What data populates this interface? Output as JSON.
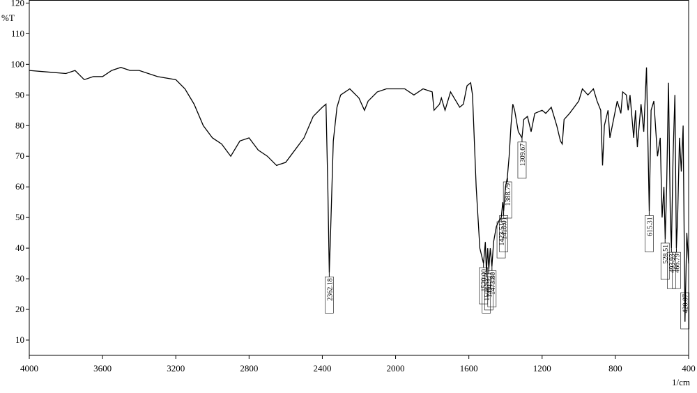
{
  "chart_data": {
    "type": "line",
    "y_label": "%T",
    "x_label": "1/cm",
    "xlim": [
      4000,
      400
    ],
    "ylim": [
      5,
      121
    ],
    "xticks": [
      4000,
      3600,
      3200,
      2800,
      2400,
      2000,
      1600,
      1200,
      800,
      400
    ],
    "yticks": [
      10,
      20,
      30,
      40,
      50,
      60,
      70,
      80,
      90,
      100,
      110,
      120
    ],
    "series": [
      {
        "color": "#000000",
        "x": [
          4000,
          3900,
          3800,
          3750,
          3700,
          3650,
          3600,
          3550,
          3500,
          3450,
          3400,
          3300,
          3200,
          3150,
          3100,
          3050,
          3000,
          2950,
          2900,
          2850,
          2800,
          2750,
          2700,
          2650,
          2600,
          2550,
          2500,
          2450,
          2400,
          2380,
          2370,
          2362,
          2355,
          2340,
          2320,
          2300,
          2250,
          2200,
          2170,
          2150,
          2100,
          2050,
          2000,
          1950,
          1900,
          1850,
          1800,
          1790,
          1760,
          1750,
          1730,
          1700,
          1680,
          1650,
          1630,
          1610,
          1590,
          1580,
          1560,
          1540,
          1520,
          1510,
          1504,
          1497,
          1491,
          1483,
          1474,
          1465,
          1450,
          1435,
          1423,
          1415,
          1410,
          1400,
          1390,
          1380,
          1370,
          1360,
          1350,
          1330,
          1310,
          1300,
          1280,
          1260,
          1240,
          1200,
          1180,
          1150,
          1120,
          1100,
          1090,
          1080,
          1050,
          1000,
          980,
          950,
          920,
          900,
          880,
          870,
          860,
          840,
          830,
          810,
          790,
          770,
          760,
          740,
          730,
          720,
          700,
          690,
          680,
          660,
          645,
          630,
          615,
          605,
          590,
          570,
          555,
          545,
          535,
          528,
          520,
          510,
          500,
          494,
          485,
          475,
          467,
          460,
          450,
          440,
          430,
          420,
          410,
          400
        ],
        "values": [
          98,
          97.5,
          97,
          98,
          95,
          96,
          96,
          98,
          99,
          98,
          98,
          96,
          95,
          92,
          87,
          80,
          76,
          74,
          70,
          75,
          76,
          72,
          70,
          67,
          68,
          72,
          76,
          83,
          86,
          87,
          60,
          32,
          45,
          75,
          86,
          90,
          92,
          89,
          85,
          88,
          91,
          92,
          92,
          92,
          90,
          92,
          91,
          85,
          87,
          89,
          85,
          91,
          89,
          86,
          87,
          93,
          94,
          90,
          60,
          40,
          35,
          42,
          32,
          40,
          33,
          40,
          34,
          42,
          47,
          49,
          50,
          55,
          52,
          60,
          63,
          70,
          80,
          87,
          85,
          78,
          76,
          82,
          83,
          78,
          84,
          85,
          84,
          86,
          80,
          75,
          74,
          82,
          84,
          88,
          92,
          90,
          92,
          88,
          85,
          67,
          80,
          85,
          76,
          82,
          88,
          84,
          91,
          90,
          85,
          90,
          76,
          85,
          73,
          87,
          78,
          99,
          52,
          85,
          88,
          70,
          76,
          50,
          60,
          43,
          60,
          94,
          50,
          40,
          70,
          90,
          40,
          50,
          76,
          65,
          80,
          16,
          45,
          35
        ]
      }
    ],
    "annotations": [
      {
        "value": 2362.18,
        "label": "2362.18"
      },
      {
        "value": 1520,
        "label": "1520.00"
      },
      {
        "value": 1504.53,
        "label": "1504.53"
      },
      {
        "value": 1491.11,
        "label": "1491.11"
      },
      {
        "value": 1473.8,
        "label": "1473.80"
      },
      {
        "value": 1423.51,
        "label": "1423.51"
      },
      {
        "value": 1410.01,
        "label": "1410.01"
      },
      {
        "value": 1388.79,
        "label": "1388.79"
      },
      {
        "value": 1309.67,
        "label": "1309.67"
      },
      {
        "value": 615.31,
        "label": "615.31"
      },
      {
        "value": 528.51,
        "label": "528.51"
      },
      {
        "value": 493.93,
        "label": "493.93"
      },
      {
        "value": 466.79,
        "label": "466.79"
      },
      {
        "value": 420.07,
        "label": "420.07"
      }
    ]
  }
}
